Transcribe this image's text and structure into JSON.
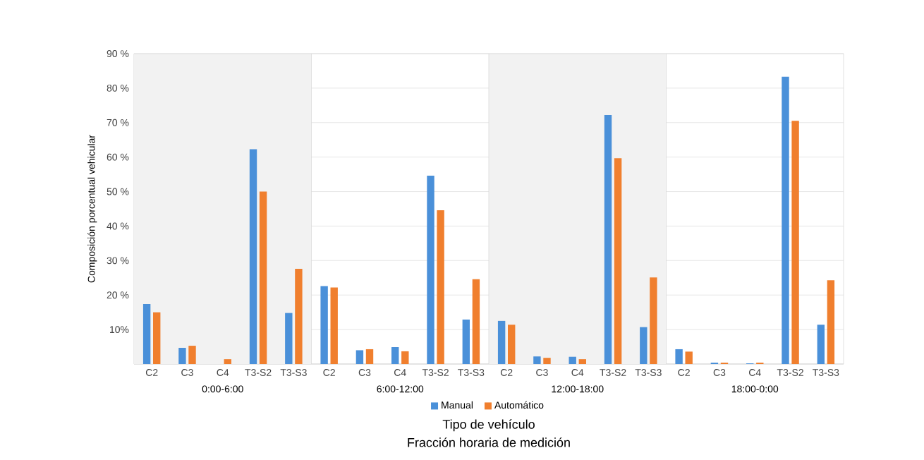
{
  "chart_data": {
    "type": "bar",
    "ylabel": "Composición porcentual vehicular",
    "xlabel": "Tipo de vehículo",
    "categories": [
      "C2",
      "C3",
      "C4",
      "T3-S2",
      "T3-S3",
      "C2",
      "C3",
      "C4",
      "T3-S2",
      "T3-S3",
      "C2",
      "C3",
      "C4",
      "T3-S2",
      "T3-S3",
      "C2",
      "C3",
      "C4",
      "T3-S2",
      "T3-S3"
    ],
    "series": [
      {
        "name": "Manual",
        "color": "#4a90d9",
        "values": [
          17.4,
          4.7,
          0,
          62.3,
          14.8,
          22.6,
          4.0,
          4.9,
          54.6,
          12.9,
          12.5,
          2.2,
          2.1,
          72.2,
          10.7,
          4.3,
          0.4,
          0.2,
          83.3,
          11.4
        ]
      },
      {
        "name": "Automático",
        "color": "#f07f2e",
        "values": [
          15.0,
          5.3,
          1.4,
          50.0,
          27.6,
          22.2,
          4.3,
          3.7,
          44.6,
          24.6,
          11.4,
          1.8,
          1.4,
          59.7,
          25.1,
          3.6,
          0.4,
          0.4,
          70.5,
          24.3
        ]
      }
    ],
    "ylim": [
      0,
      90
    ],
    "yticks": [
      {
        "value": 0,
        "label": null
      },
      {
        "value": 10,
        "label": "10%"
      },
      {
        "value": 20,
        "label": "20 %"
      },
      {
        "value": 30,
        "label": "30 %"
      },
      {
        "value": 40,
        "label": "40 %"
      },
      {
        "value": 50,
        "label": "50 %"
      },
      {
        "value": 60,
        "label": "60 %"
      },
      {
        "value": 70,
        "label": "70 %"
      },
      {
        "value": 80,
        "label": "80 %"
      },
      {
        "value": 90,
        "label": "90 %"
      }
    ],
    "annotations": [
      "0:00-6:00",
      "6:00-12:00",
      "12:00-18:00",
      "18:00-0:00",
      "Fracción horaria de medición"
    ],
    "grid": "y",
    "legend": "bottom"
  }
}
